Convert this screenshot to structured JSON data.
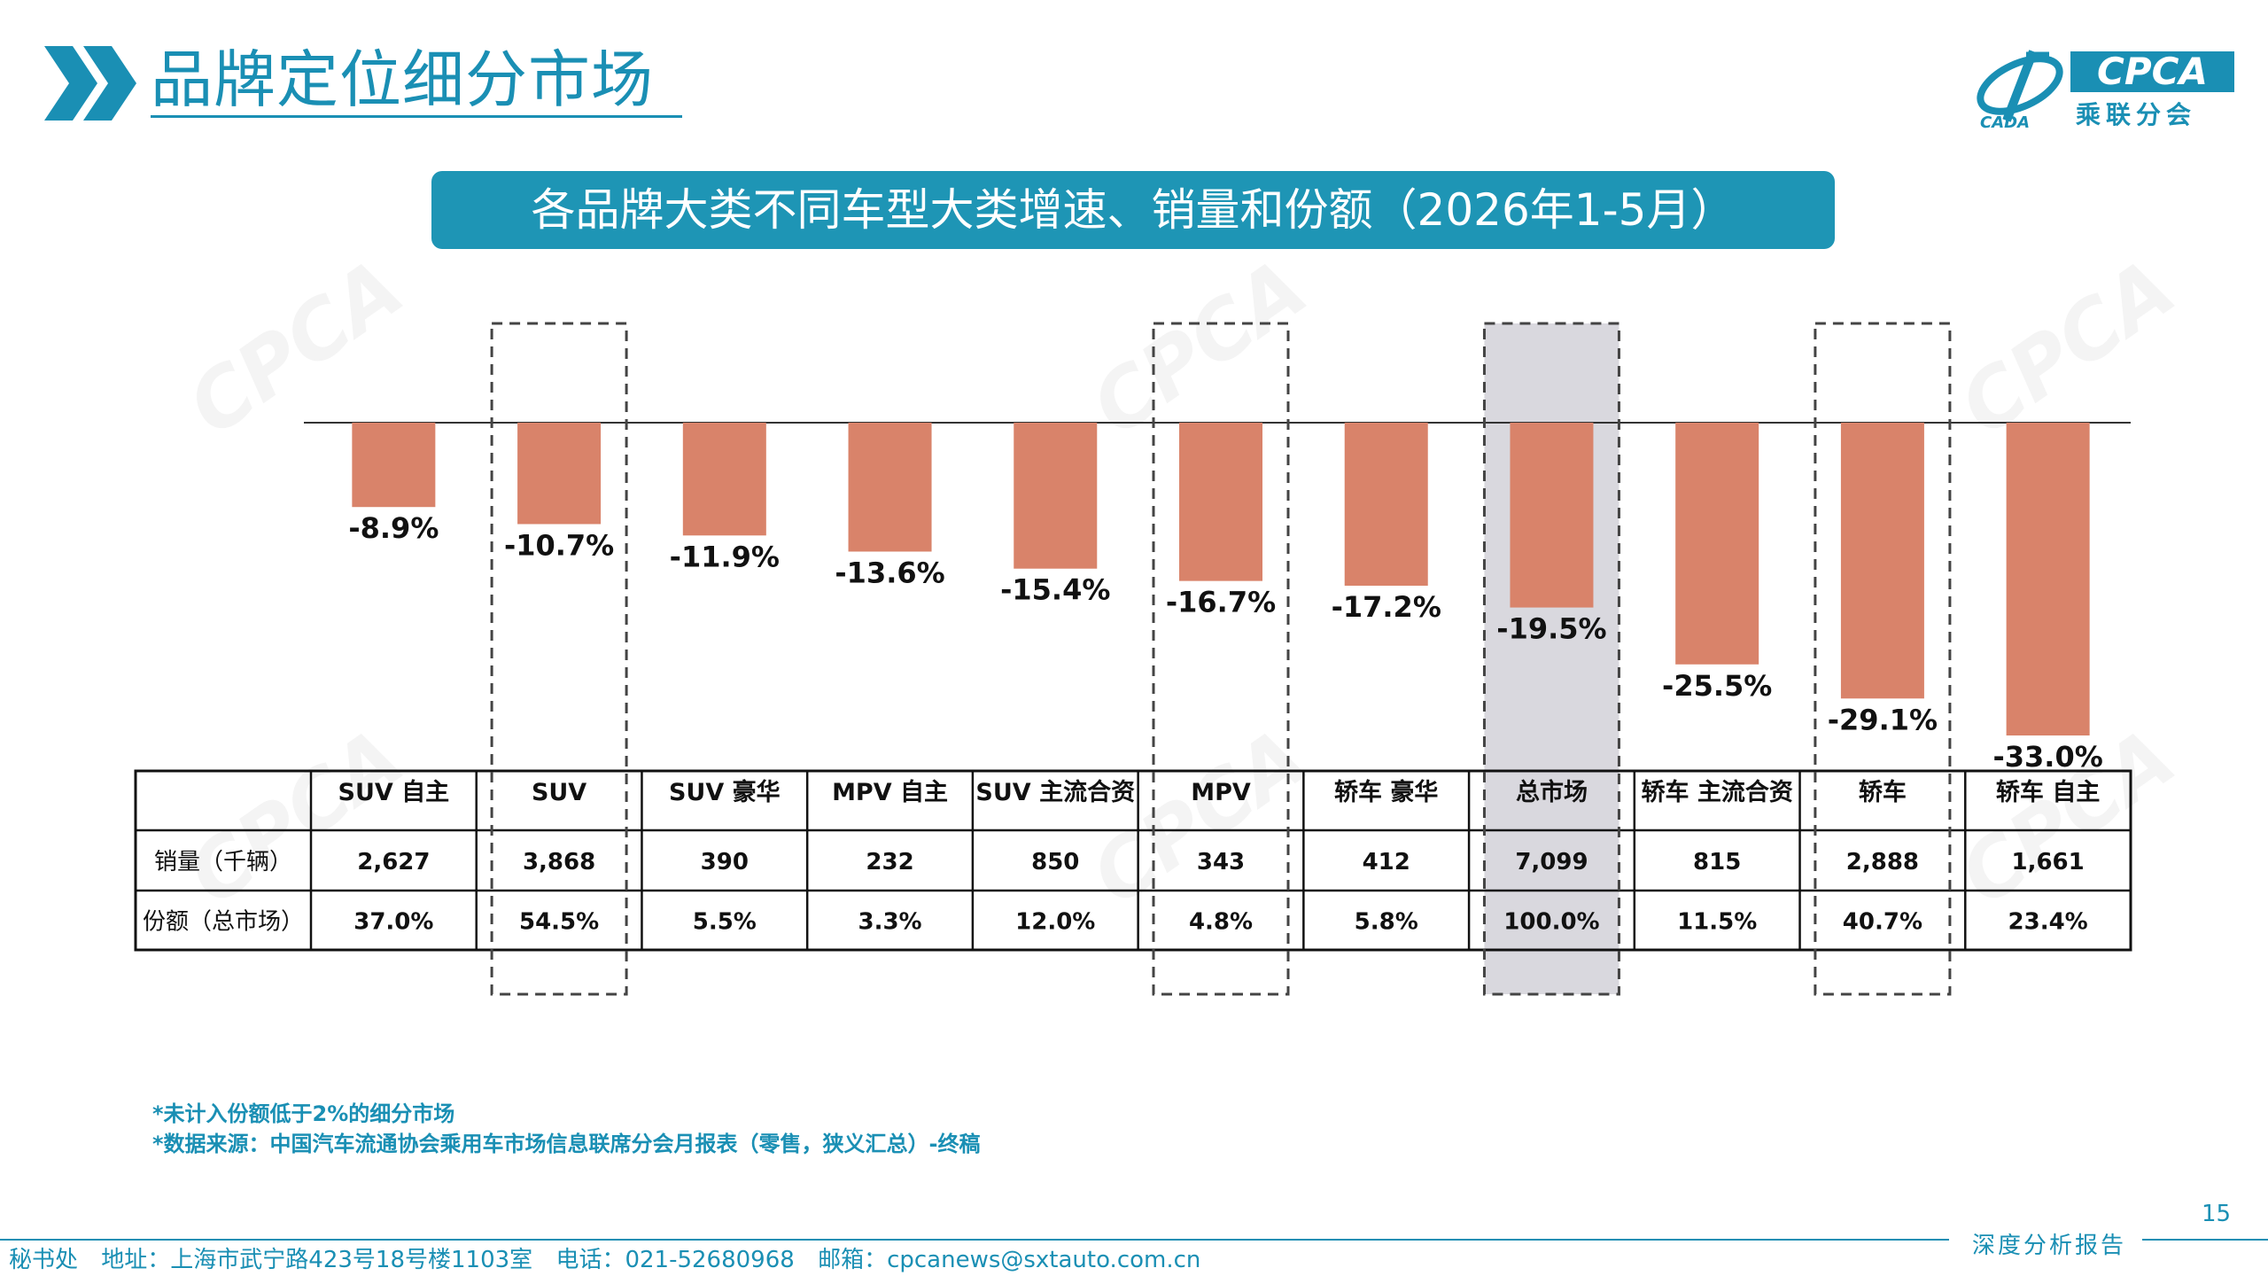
{
  "header": {
    "title": "品牌定位细分市场"
  },
  "logo": {
    "text": "CPCA",
    "cn": "乘联分会",
    "sub": "CADA"
  },
  "banner": {
    "title": "各品牌大类不同车型大类增速、销量和份额（2026年1-5月）"
  },
  "watermark": {
    "text": "CPCA"
  },
  "chart_data": {
    "type": "bar",
    "categories": [
      "SUV 自主",
      "SUV",
      "SUV 豪华",
      "MPV 自主",
      "SUV 主流合资",
      "MPV",
      "轿车 豪华",
      "总市场",
      "轿车 主流合资",
      "轿车",
      "轿车 自主"
    ],
    "series": [
      {
        "values": [
          -8.9,
          -10.7,
          -11.9,
          -13.6,
          -15.4,
          -16.7,
          -17.2,
          -19.5,
          -25.5,
          -29.1,
          -33.0
        ]
      }
    ],
    "value_labels": [
      "-8.9%",
      "-10.7%",
      "-11.9%",
      "-13.6%",
      "-15.4%",
      "-16.7%",
      "-17.2%",
      "-19.5%",
      "-25.5%",
      "-29.1%",
      "-33.0%"
    ],
    "ylim": [
      -33.0,
      0
    ],
    "bar_color": "#d9836a",
    "highlight_dashed": [
      "SUV",
      "MPV",
      "总市场",
      "轿车"
    ],
    "highlight_filled": [
      "总市场"
    ],
    "highlight_fill_color": "#d9d8de",
    "table": {
      "rows": [
        {
          "label": "销量（千辆）",
          "values": [
            "2,627",
            "3,868",
            "390",
            "232",
            "850",
            "343",
            "412",
            "7,099",
            "815",
            "2,888",
            "1,661"
          ]
        },
        {
          "label": "份额（总市场）",
          "values": [
            "37.0%",
            "54.5%",
            "5.5%",
            "3.3%",
            "12.0%",
            "4.8%",
            "5.8%",
            "100.0%",
            "11.5%",
            "40.7%",
            "23.4%"
          ]
        }
      ]
    }
  },
  "notes": [
    "*未计入份额低于2%的细分市场",
    "*数据来源：中国汽车流通协会乘用车市场信息联席分会月报表（零售，狭义汇总）-终稿"
  ],
  "page_number": "15",
  "footer": {
    "tag": "深度分析报告",
    "office": "秘书处",
    "address": "地址：上海市武宁路423号18号楼1103室",
    "phone": "电话：021-52680968",
    "email": "邮箱：cpcanews@sxtauto.com.cn"
  },
  "colors": {
    "brand": "#1a8fb4",
    "bar": "#d9836a"
  }
}
